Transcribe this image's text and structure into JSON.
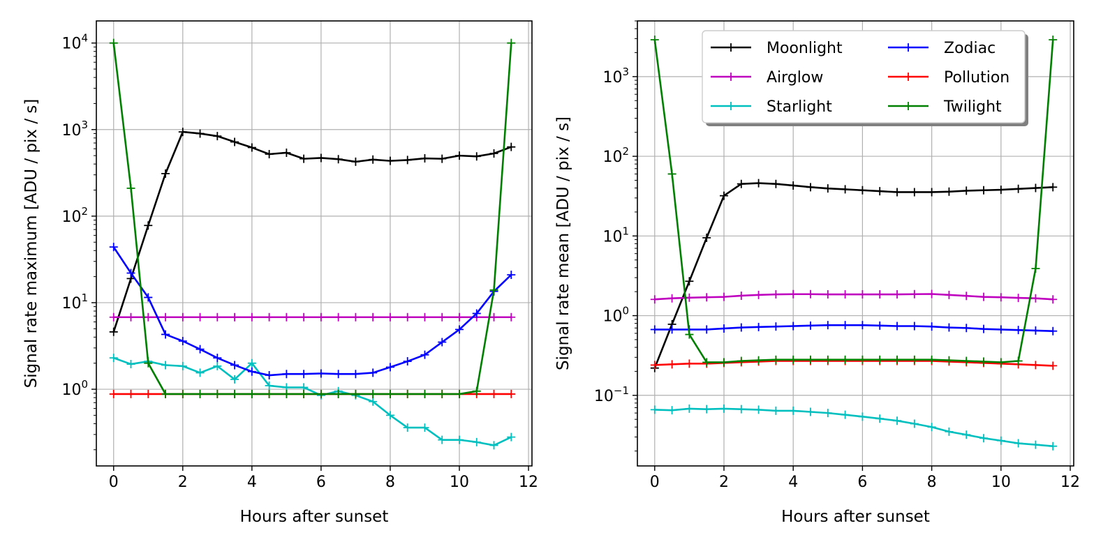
{
  "chart_data": [
    {
      "type": "line",
      "xlabel": "Hours after sunset",
      "ylabel": "Signal rate maximum [ADU / pix / s]",
      "yscale": "log",
      "xlim": [
        -0.5,
        12.1
      ],
      "ylim": [
        0.13,
        18000
      ],
      "xticks": [
        "0",
        "2",
        "4",
        "6",
        "8",
        "10",
        "12"
      ],
      "yticks": [
        {
          "base": "10",
          "exp": "0",
          "value": 1
        },
        {
          "base": "10",
          "exp": "1",
          "value": 10
        },
        {
          "base": "10",
          "exp": "2",
          "value": 100
        },
        {
          "base": "10",
          "exp": "3",
          "value": 1000
        },
        {
          "base": "10",
          "exp": "4",
          "value": 10000
        }
      ],
      "grid": true,
      "x": [
        0,
        0.5,
        1,
        1.5,
        2,
        2.5,
        3,
        3.5,
        4,
        4.5,
        5,
        5.5,
        6,
        6.5,
        7,
        7.5,
        8,
        8.5,
        9,
        9.5,
        10,
        10.5,
        11,
        11.5
      ],
      "series": [
        {
          "name": "Moonlight",
          "color": "#000000",
          "values": [
            4.6,
            19,
            78,
            310,
            940,
            900,
            840,
            720,
            620,
            520,
            540,
            460,
            470,
            455,
            425,
            450,
            435,
            445,
            465,
            460,
            500,
            490,
            530,
            630
          ]
        },
        {
          "name": "Airglow",
          "color": "#bf00bf",
          "values": [
            6.8,
            6.8,
            6.8,
            6.8,
            6.8,
            6.8,
            6.8,
            6.8,
            6.8,
            6.8,
            6.8,
            6.8,
            6.8,
            6.8,
            6.8,
            6.8,
            6.8,
            6.8,
            6.8,
            6.8,
            6.8,
            6.8,
            6.8,
            6.8
          ]
        },
        {
          "name": "Starlight",
          "color": "#00bfbf",
          "values": [
            2.3,
            1.95,
            2.1,
            1.9,
            1.85,
            1.55,
            1.85,
            1.3,
            2.0,
            1.1,
            1.05,
            1.05,
            0.85,
            0.95,
            0.85,
            0.72,
            0.5,
            0.36,
            0.36,
            0.26,
            0.26,
            0.245,
            0.225,
            0.28
          ]
        },
        {
          "name": "Zodiac",
          "color": "#0000ff",
          "values": [
            44,
            22,
            11.5,
            4.3,
            3.6,
            2.9,
            2.3,
            1.9,
            1.6,
            1.45,
            1.5,
            1.5,
            1.52,
            1.5,
            1.5,
            1.55,
            1.8,
            2.1,
            2.5,
            3.5,
            4.9,
            7.5,
            13.5,
            21
          ]
        },
        {
          "name": "Pollution",
          "color": "#ff0000",
          "values": [
            0.88,
            0.88,
            0.88,
            0.88,
            0.88,
            0.88,
            0.88,
            0.88,
            0.88,
            0.88,
            0.88,
            0.88,
            0.88,
            0.88,
            0.88,
            0.88,
            0.88,
            0.88,
            0.88,
            0.88,
            0.88,
            0.88,
            0.88,
            0.88
          ]
        },
        {
          "name": "Twilight",
          "color": "#008000",
          "values": [
            10000,
            210,
            2.0,
            0.88,
            0.88,
            0.88,
            0.88,
            0.88,
            0.88,
            0.88,
            0.88,
            0.88,
            0.88,
            0.88,
            0.88,
            0.88,
            0.88,
            0.88,
            0.88,
            0.88,
            0.88,
            0.95,
            14,
            10000
          ]
        }
      ]
    },
    {
      "type": "line",
      "xlabel": "Hours after sunset",
      "ylabel": "Signal rate mean [ADU / pix / s]",
      "yscale": "log",
      "xlim": [
        -0.5,
        12.1
      ],
      "ylim": [
        0.013,
        5000
      ],
      "xticks": [
        "0",
        "2",
        "4",
        "6",
        "8",
        "10",
        "12"
      ],
      "yticks": [
        {
          "base": "10",
          "exp": "−1",
          "value": 0.1
        },
        {
          "base": "10",
          "exp": "0",
          "value": 1
        },
        {
          "base": "10",
          "exp": "1",
          "value": 10
        },
        {
          "base": "10",
          "exp": "2",
          "value": 100
        },
        {
          "base": "10",
          "exp": "3",
          "value": 1000
        }
      ],
      "grid": true,
      "legend": {
        "position": "top-right",
        "columns": 2,
        "order": [
          0,
          1,
          2,
          3,
          4,
          5
        ]
      },
      "x": [
        0,
        0.5,
        1,
        1.5,
        2,
        2.5,
        3,
        3.5,
        4,
        4.5,
        5,
        5.5,
        6,
        6.5,
        7,
        7.5,
        8,
        8.5,
        9,
        9.5,
        10,
        10.5,
        11,
        11.5
      ],
      "series": [
        {
          "name": "Moonlight",
          "color": "#000000",
          "values": [
            0.22,
            0.78,
            2.7,
            9.5,
            32,
            45,
            46,
            45,
            43,
            41,
            39.5,
            38.5,
            37.5,
            36.5,
            35.5,
            35.5,
            35.5,
            36,
            37,
            37.5,
            38,
            39,
            40,
            41
          ]
        },
        {
          "name": "Airglow",
          "color": "#bf00bf",
          "values": [
            1.6,
            1.65,
            1.68,
            1.7,
            1.72,
            1.78,
            1.82,
            1.85,
            1.86,
            1.86,
            1.85,
            1.85,
            1.85,
            1.85,
            1.85,
            1.86,
            1.87,
            1.82,
            1.77,
            1.72,
            1.7,
            1.67,
            1.65,
            1.6
          ]
        },
        {
          "name": "Starlight",
          "color": "#00bfbf",
          "values": [
            0.066,
            0.065,
            0.068,
            0.067,
            0.068,
            0.067,
            0.066,
            0.064,
            0.064,
            0.062,
            0.06,
            0.057,
            0.054,
            0.051,
            0.048,
            0.044,
            0.04,
            0.035,
            0.032,
            0.029,
            0.027,
            0.025,
            0.024,
            0.023
          ]
        },
        {
          "name": "Zodiac",
          "color": "#0000ff",
          "values": [
            0.67,
            0.67,
            0.67,
            0.67,
            0.69,
            0.71,
            0.72,
            0.73,
            0.74,
            0.75,
            0.76,
            0.76,
            0.76,
            0.75,
            0.74,
            0.74,
            0.73,
            0.71,
            0.7,
            0.68,
            0.67,
            0.66,
            0.65,
            0.64
          ]
        },
        {
          "name": "Pollution",
          "color": "#ff0000",
          "values": [
            0.24,
            0.245,
            0.25,
            0.25,
            0.255,
            0.26,
            0.265,
            0.27,
            0.27,
            0.27,
            0.27,
            0.27,
            0.27,
            0.27,
            0.27,
            0.27,
            0.27,
            0.265,
            0.26,
            0.255,
            0.25,
            0.245,
            0.24,
            0.235
          ]
        },
        {
          "name": "Twilight",
          "color": "#008000",
          "values": [
            2900,
            60,
            0.58,
            0.26,
            0.26,
            0.27,
            0.275,
            0.28,
            0.28,
            0.28,
            0.28,
            0.28,
            0.28,
            0.28,
            0.28,
            0.28,
            0.28,
            0.275,
            0.27,
            0.265,
            0.26,
            0.27,
            3.9,
            2900
          ]
        }
      ]
    }
  ]
}
